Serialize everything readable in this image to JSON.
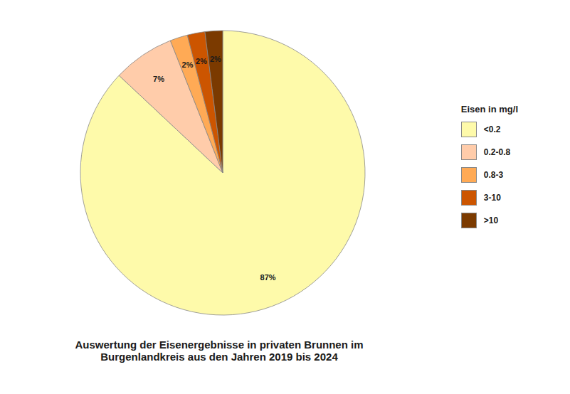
{
  "chart_data": {
    "type": "pie",
    "title": "Auswertung der Eisenergebnisse in privaten Brunnen im\nBurgenlandkreis aus den Jahren 2019 bis 2024",
    "legend_title": "Eisen in mg/l",
    "categories": [
      "<0.2",
      "0.2-0.8",
      "0.8-3",
      "3-10",
      ">10"
    ],
    "values": [
      87,
      7,
      2,
      2,
      2
    ],
    "value_labels": [
      "87%",
      "7%",
      "2%",
      "2%",
      "2%"
    ],
    "colors": [
      "#FEFAAA",
      "#FFCCAA",
      "#FFAA55",
      "#CC5500",
      "#7B3A00"
    ],
    "data_labels": true,
    "legend": "right"
  }
}
